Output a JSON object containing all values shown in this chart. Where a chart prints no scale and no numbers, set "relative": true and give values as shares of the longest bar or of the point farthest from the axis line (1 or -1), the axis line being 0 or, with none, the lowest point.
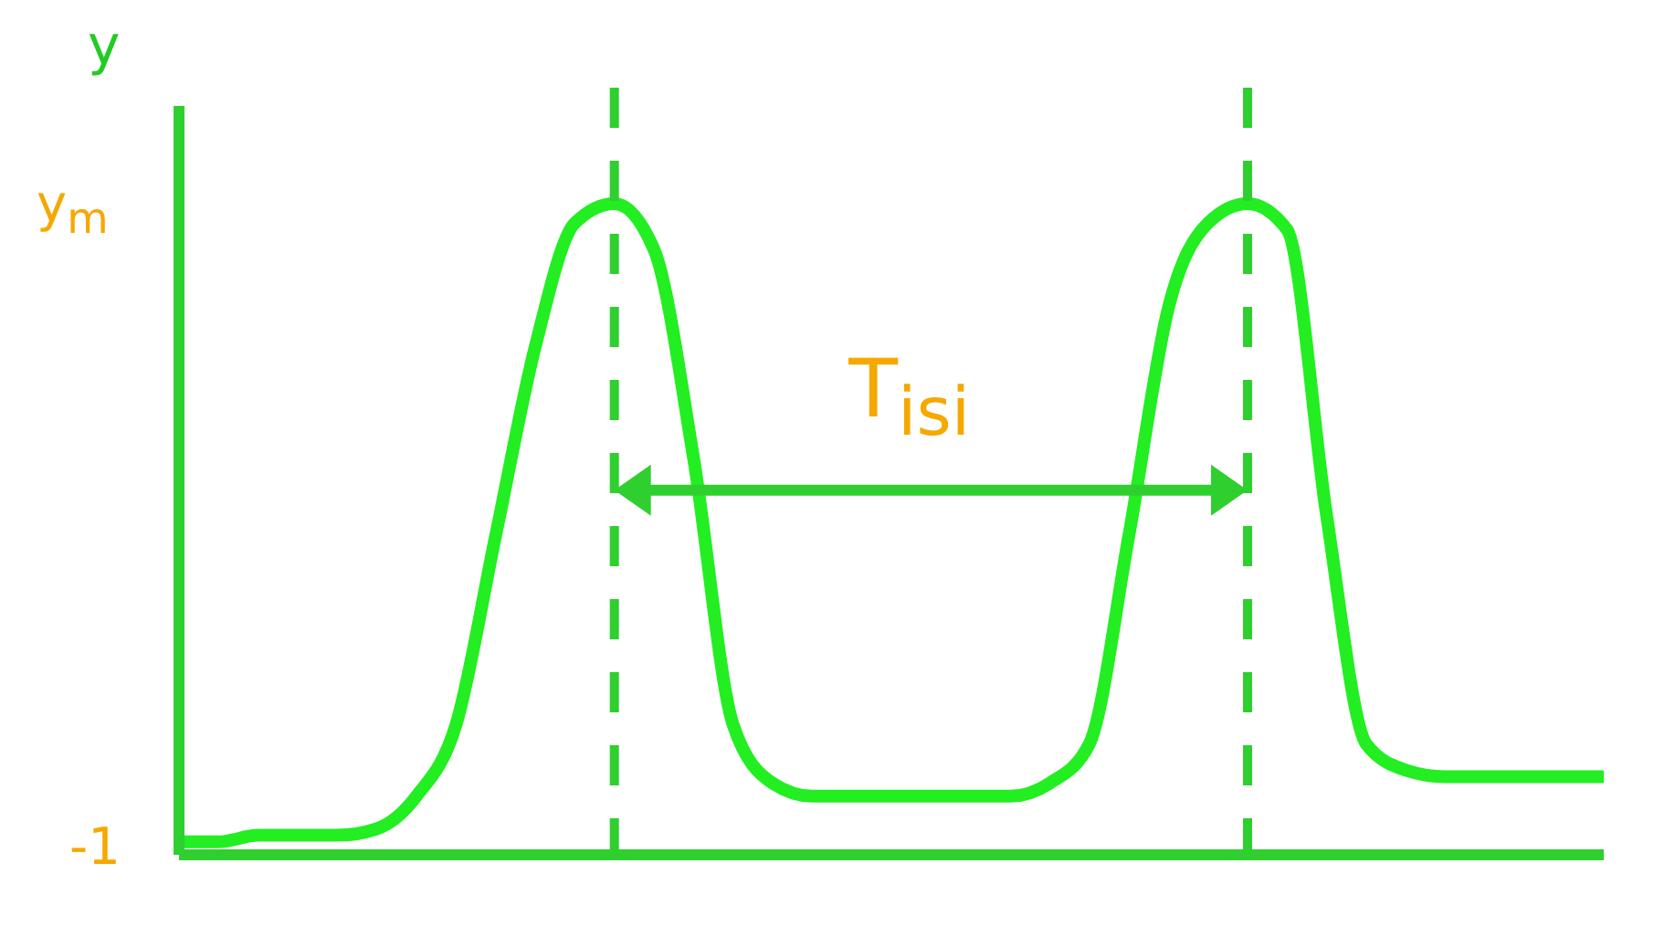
{
  "chart_data": {
    "type": "line",
    "relative": true,
    "categories": [
      null,
      null,
      null,
      null,
      null,
      null,
      null,
      null,
      null,
      null,
      null,
      null,
      null,
      null,
      null,
      null,
      null,
      null,
      null,
      null,
      null,
      null,
      null,
      null,
      null,
      null,
      null,
      null,
      null,
      null,
      null,
      null,
      null,
      null,
      null,
      null,
      null
    ],
    "series": [
      {
        "color": "#22ee22",
        "values": [
          0.02,
          0.02,
          0.03,
          0.03,
          0.03,
          0.04,
          0.09,
          0.2,
          0.49,
          0.78,
          0.97,
          1.0,
          0.93,
          0.61,
          0.2,
          0.11,
          0.09,
          0.09,
          0.09,
          0.09,
          0.09,
          0.09,
          0.11,
          0.17,
          0.49,
          0.84,
          0.97,
          1.0,
          0.96,
          0.52,
          0.17,
          0.13,
          0.12,
          0.12,
          0.12,
          0.12,
          0.12
        ]
      }
    ],
    "ylabel": "y",
    "annotations": [
      "-1",
      "y$_{m}$",
      "T$_{isi}$"
    ],
    "grid": false,
    "legend": false,
    "marker": "none",
    "line_style": "solid"
  }
}
